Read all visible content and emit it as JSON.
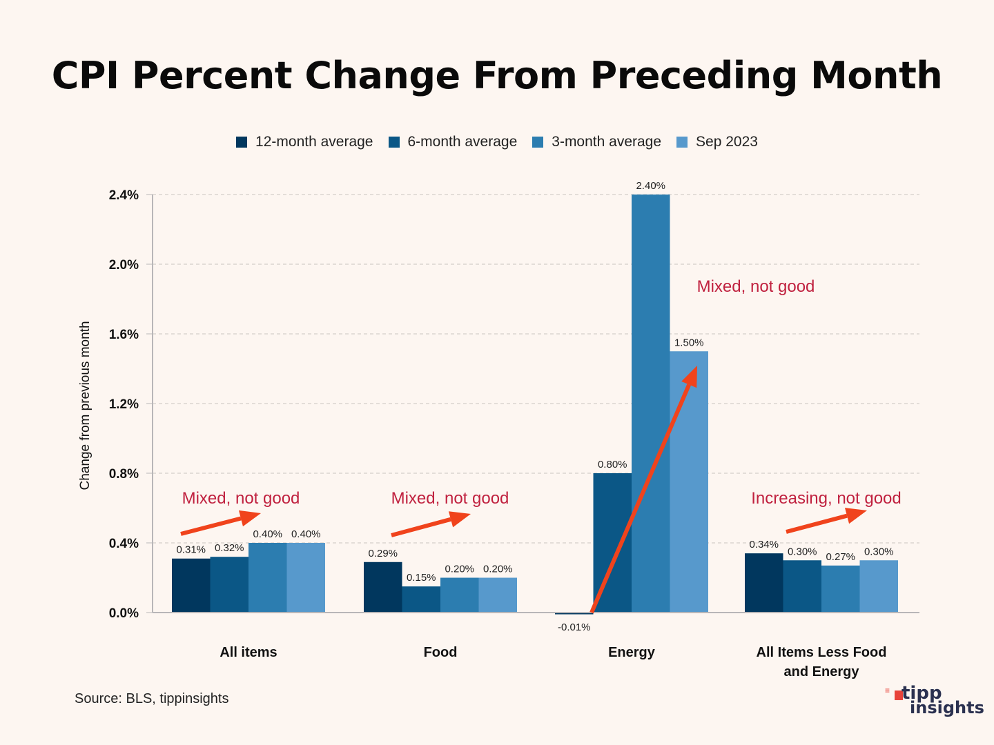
{
  "title": "CPI Percent Change From Preceding Month",
  "source": "Source: BLS, tippinsights",
  "logo": {
    "line1": "tipp",
    "line2": "insights"
  },
  "chart_data": {
    "type": "bar",
    "title": "CPI Percent Change From Preceding Month",
    "xlabel": "",
    "ylabel": "Change from previous month",
    "ylim": [
      0,
      2.4
    ],
    "yticks": [
      0.0,
      0.4,
      0.8,
      1.2,
      1.6,
      2.0,
      2.4
    ],
    "ytick_labels": [
      "0.0%",
      "0.4%",
      "0.8%",
      "1.2%",
      "1.6%",
      "2.0%",
      "2.4%"
    ],
    "grid": true,
    "legend_position": "top-center",
    "categories": [
      "All items",
      "Food",
      "Energy",
      "All Items Less Food and Energy"
    ],
    "series": [
      {
        "name": "12-month average",
        "color": "#01375e",
        "values": [
          0.31,
          0.29,
          -0.01,
          0.34
        ],
        "labels": [
          "0.31%",
          "0.29%",
          "-0.01%",
          "0.34%"
        ]
      },
      {
        "name": "6-month average",
        "color": "#0b5786",
        "values": [
          0.32,
          0.15,
          0.8,
          0.3
        ],
        "labels": [
          "0.32%",
          "0.15%",
          "0.80%",
          "0.30%"
        ]
      },
      {
        "name": "3-month average",
        "color": "#2c7db0",
        "values": [
          0.4,
          0.2,
          2.4,
          0.27
        ],
        "labels": [
          "0.40%",
          "0.20%",
          "2.40%",
          "0.27%"
        ]
      },
      {
        "name": "Sep 2023",
        "color": "#5799cc",
        "values": [
          0.4,
          0.2,
          1.5,
          0.3
        ],
        "labels": [
          "0.40%",
          "0.20%",
          "1.50%",
          "0.30%"
        ]
      }
    ],
    "annotations": [
      {
        "text": "Mixed, not good",
        "category": "All items"
      },
      {
        "text": "Mixed, not good",
        "category": "Food"
      },
      {
        "text": "Mixed, not good",
        "category": "Energy"
      },
      {
        "text": "Increasing, not good",
        "category": "All Items Less Food and Energy"
      }
    ],
    "annotation_color": "#c0213f",
    "arrow_color": "#f0431c"
  }
}
